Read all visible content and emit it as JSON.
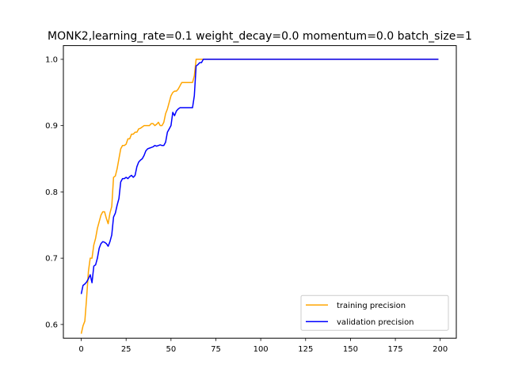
{
  "chart_data": {
    "type": "line",
    "title": "MONK2,learning_rate=0.1  weight_decay=0.0  momentum=0.0  batch_size=1",
    "xlabel": "",
    "ylabel": "",
    "xlim": [
      -9.95,
      208.95
    ],
    "ylim": [
      0.5793,
      1.0207
    ],
    "xticks": [
      0,
      25,
      50,
      75,
      100,
      125,
      150,
      175,
      200
    ],
    "yticks": [
      0.6,
      0.7,
      0.8,
      0.9,
      1.0
    ],
    "xtick_labels": [
      "0",
      "25",
      "50",
      "75",
      "100",
      "125",
      "150",
      "175",
      "200"
    ],
    "ytick_labels": [
      "0.6",
      "0.7",
      "0.8",
      "0.9",
      "1.0"
    ],
    "grid": false,
    "legend_position": "lower-right",
    "series": [
      {
        "name": "training precision",
        "color": "#ffa500",
        "x": [
          0,
          1,
          2,
          3,
          4,
          5,
          6,
          7,
          8,
          9,
          10,
          11,
          12,
          13,
          14,
          15,
          16,
          17,
          18,
          19,
          20,
          21,
          22,
          23,
          24,
          25,
          26,
          27,
          28,
          29,
          30,
          31,
          32,
          33,
          34,
          35,
          36,
          37,
          38,
          39,
          40,
          41,
          42,
          43,
          44,
          45,
          46,
          47,
          48,
          49,
          50,
          51,
          52,
          53,
          54,
          55,
          56,
          57,
          58,
          59,
          60,
          61,
          62,
          63,
          64,
          65,
          66,
          67,
          68,
          69,
          70,
          199
        ],
        "y": [
          0.586,
          0.598,
          0.605,
          0.64,
          0.68,
          0.7,
          0.7,
          0.72,
          0.73,
          0.745,
          0.755,
          0.765,
          0.77,
          0.77,
          0.76,
          0.752,
          0.768,
          0.778,
          0.822,
          0.824,
          0.835,
          0.85,
          0.865,
          0.87,
          0.87,
          0.872,
          0.88,
          0.88,
          0.887,
          0.887,
          0.89,
          0.89,
          0.895,
          0.896,
          0.898,
          0.9,
          0.9,
          0.9,
          0.9,
          0.903,
          0.903,
          0.9,
          0.902,
          0.905,
          0.9,
          0.9,
          0.905,
          0.918,
          0.925,
          0.935,
          0.945,
          0.95,
          0.952,
          0.952,
          0.955,
          0.96,
          0.965,
          0.965,
          0.965,
          0.965,
          0.965,
          0.965,
          0.965,
          0.975,
          1.0,
          1.0,
          1.0,
          1.0,
          1.0,
          1.0,
          1.0,
          1.0
        ]
      },
      {
        "name": "validation precision",
        "color": "#0000ff",
        "x": [
          0,
          1,
          2,
          3,
          4,
          5,
          6,
          7,
          8,
          9,
          10,
          11,
          12,
          13,
          14,
          15,
          16,
          17,
          18,
          19,
          20,
          21,
          22,
          23,
          24,
          25,
          26,
          27,
          28,
          29,
          30,
          31,
          32,
          33,
          34,
          35,
          36,
          37,
          38,
          39,
          40,
          41,
          42,
          43,
          44,
          45,
          46,
          47,
          48,
          49,
          50,
          51,
          52,
          53,
          54,
          55,
          56,
          57,
          58,
          59,
          60,
          61,
          62,
          63,
          64,
          65,
          66,
          67,
          68,
          69,
          70,
          199
        ],
        "y": [
          0.646,
          0.659,
          0.661,
          0.664,
          0.669,
          0.675,
          0.663,
          0.688,
          0.69,
          0.7,
          0.715,
          0.722,
          0.725,
          0.724,
          0.722,
          0.718,
          0.725,
          0.735,
          0.762,
          0.768,
          0.78,
          0.79,
          0.815,
          0.82,
          0.82,
          0.822,
          0.82,
          0.823,
          0.825,
          0.822,
          0.825,
          0.838,
          0.845,
          0.848,
          0.85,
          0.855,
          0.862,
          0.865,
          0.866,
          0.867,
          0.868,
          0.87,
          0.869,
          0.87,
          0.871,
          0.87,
          0.87,
          0.875,
          0.89,
          0.895,
          0.9,
          0.92,
          0.915,
          0.922,
          0.925,
          0.927,
          0.927,
          0.927,
          0.927,
          0.927,
          0.927,
          0.927,
          0.927,
          0.945,
          0.99,
          0.992,
          0.995,
          0.995,
          1.0,
          1.0,
          1.0,
          1.0
        ]
      }
    ]
  }
}
